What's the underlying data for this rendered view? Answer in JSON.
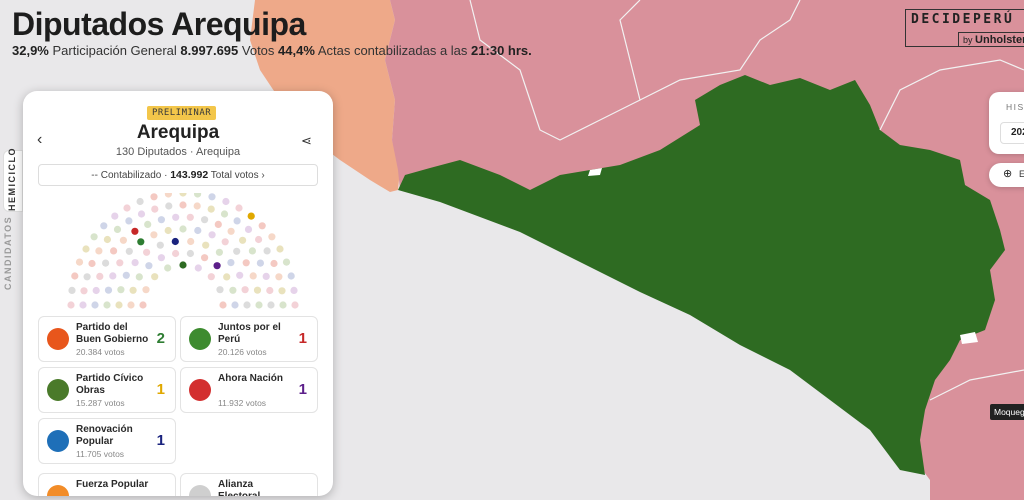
{
  "page": {
    "title": "Diputados Arequipa",
    "stats": {
      "participation": "32,9%",
      "participation_label": "Participación General",
      "votes": "8.997.695",
      "votes_label": "Votos",
      "actas": "44,4%",
      "actas_label": "Actas contabilizadas a las",
      "time": "21:30 hrs."
    }
  },
  "brand": {
    "name": "DECIDEPERÚ",
    "by": "by",
    "company": "Unholster"
  },
  "side_tabs": {
    "active": "HEMICICLO",
    "inactive": "CANDIDATOS"
  },
  "panel": {
    "badge": "PRELIMINAR",
    "back_icon": "chevron-left-icon",
    "share_icon": "share-icon",
    "region": "Arequipa",
    "subtitle": "130 Diputados · Arequipa",
    "counted": {
      "prefix": "-- Contabilizado ·",
      "total": "143.992",
      "suffix": "Total votos ›"
    },
    "parties": [
      {
        "name": "Partido del Buen Gobierno",
        "votes": "20.384 votos",
        "seats": "2",
        "color": "#2e7d32",
        "logo": "#e8561c"
      },
      {
        "name": "Juntos por el Perú",
        "votes": "20.126 votos",
        "seats": "1",
        "color": "#c62828",
        "logo": "#3d8b2f"
      },
      {
        "name": "Partido Cívico Obras",
        "votes": "15.287 votos",
        "seats": "1",
        "color": "#e0a800",
        "logo": "#4a7a2a"
      },
      {
        "name": "Ahora Nación",
        "votes": "11.932 votos",
        "seats": "1",
        "color": "#5c1f8a",
        "logo": "#d32f2f"
      },
      {
        "name": "Renovación Popular",
        "votes": "11.705 votos",
        "seats": "1",
        "color": "#1a237e",
        "logo": "#1e6fb8"
      },
      {
        "name": "Fuerza Popular",
        "votes": "",
        "seats": "",
        "color": "#e67e22",
        "logo": "#f28c28"
      },
      {
        "name": "Alianza Electoral",
        "votes": "",
        "seats": "",
        "color": "#999999",
        "logo": "#cfcfcf"
      }
    ]
  },
  "historic": {
    "label": "HIST",
    "year": "202"
  },
  "language": {
    "icon": "globe-icon",
    "label": "E"
  },
  "map": {
    "tooltip": "Moquegua",
    "colors": {
      "arequipa": "#2e6b22",
      "neighbor": "#d9919b",
      "west": "#eea989",
      "sea": "#e9e8ea"
    }
  }
}
